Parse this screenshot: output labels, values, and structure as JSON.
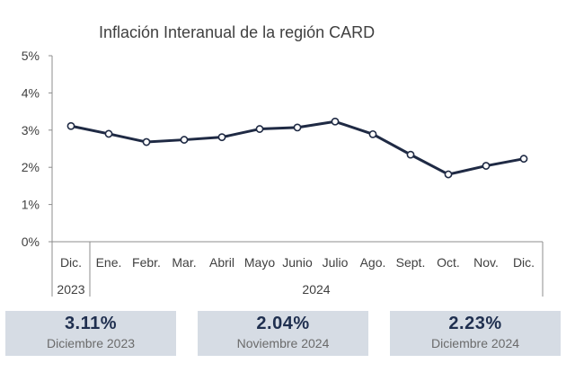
{
  "chart_data": {
    "type": "line",
    "title": "Inflación Interanual de la región CARD",
    "categories": [
      "Dic.",
      "Ene.",
      "Febr.",
      "Mar.",
      "Abril",
      "Mayo",
      "Junio",
      "Julio",
      "Ago.",
      "Sept.",
      "Oct.",
      "Nov.",
      "Dic."
    ],
    "year_groups": [
      {
        "label": "2023",
        "start": 0,
        "end": 0
      },
      {
        "label": "2024",
        "start": 1,
        "end": 12
      }
    ],
    "series": [
      {
        "values": [
          3.11,
          2.9,
          2.68,
          2.74,
          2.81,
          3.03,
          3.07,
          3.23,
          2.89,
          2.34,
          1.81,
          2.04,
          2.23
        ]
      }
    ],
    "ylim": [
      0,
      5
    ],
    "yticks": [
      "0%",
      "1%",
      "2%",
      "3%",
      "4%",
      "5%"
    ],
    "grid": false,
    "line_color": "#1f2a44"
  },
  "kpis": [
    {
      "value": "3.11%",
      "label": "Diciembre 2023"
    },
    {
      "value": "2.04%",
      "label": "Noviembre 2024"
    },
    {
      "value": "2.23%",
      "label": "Diciembre 2024"
    }
  ]
}
